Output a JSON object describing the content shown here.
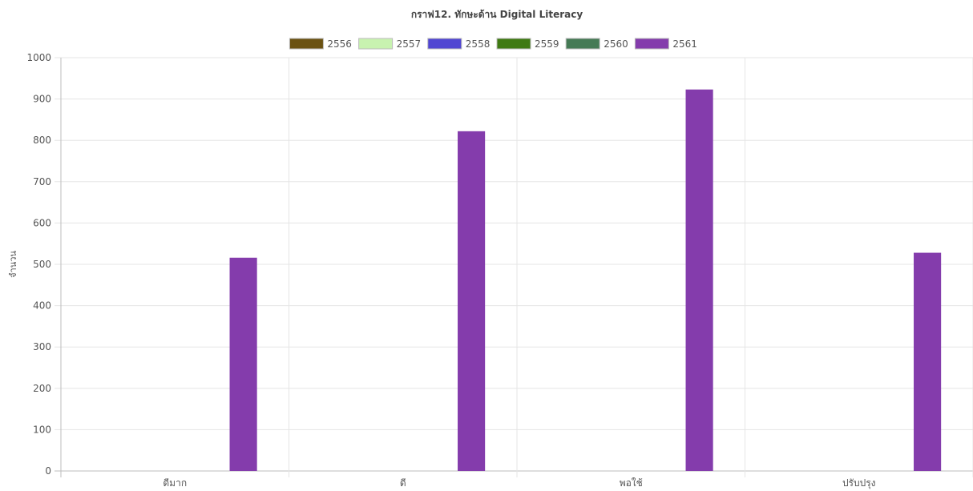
{
  "chart_data": {
    "type": "bar",
    "title": "กราฟ12. ทักษะด้าน Digital Literacy",
    "ylabel": "จำนวน",
    "xlabel": "",
    "categories": [
      "ดีมาก",
      "ดี",
      "พอใช้",
      "ปรับปรุง"
    ],
    "ylim": [
      0,
      1000
    ],
    "yticks": [
      0,
      100,
      200,
      300,
      400,
      500,
      600,
      700,
      800,
      900,
      1000
    ],
    "grid": true,
    "legend_position": "top",
    "series": [
      {
        "name": "2556",
        "color": "#6b5212",
        "values": [
          0,
          0,
          0,
          0
        ]
      },
      {
        "name": "2557",
        "color": "#c8f2b0",
        "values": [
          0,
          0,
          0,
          0
        ]
      },
      {
        "name": "2558",
        "color": "#5046d2",
        "values": [
          0,
          0,
          0,
          0
        ]
      },
      {
        "name": "2559",
        "color": "#3f7a12",
        "values": [
          0,
          0,
          0,
          0
        ]
      },
      {
        "name": "2560",
        "color": "#457a55",
        "values": [
          0,
          0,
          0,
          0
        ]
      },
      {
        "name": "2561",
        "color": "#843cac",
        "values": [
          516,
          822,
          923,
          528
        ]
      }
    ]
  }
}
